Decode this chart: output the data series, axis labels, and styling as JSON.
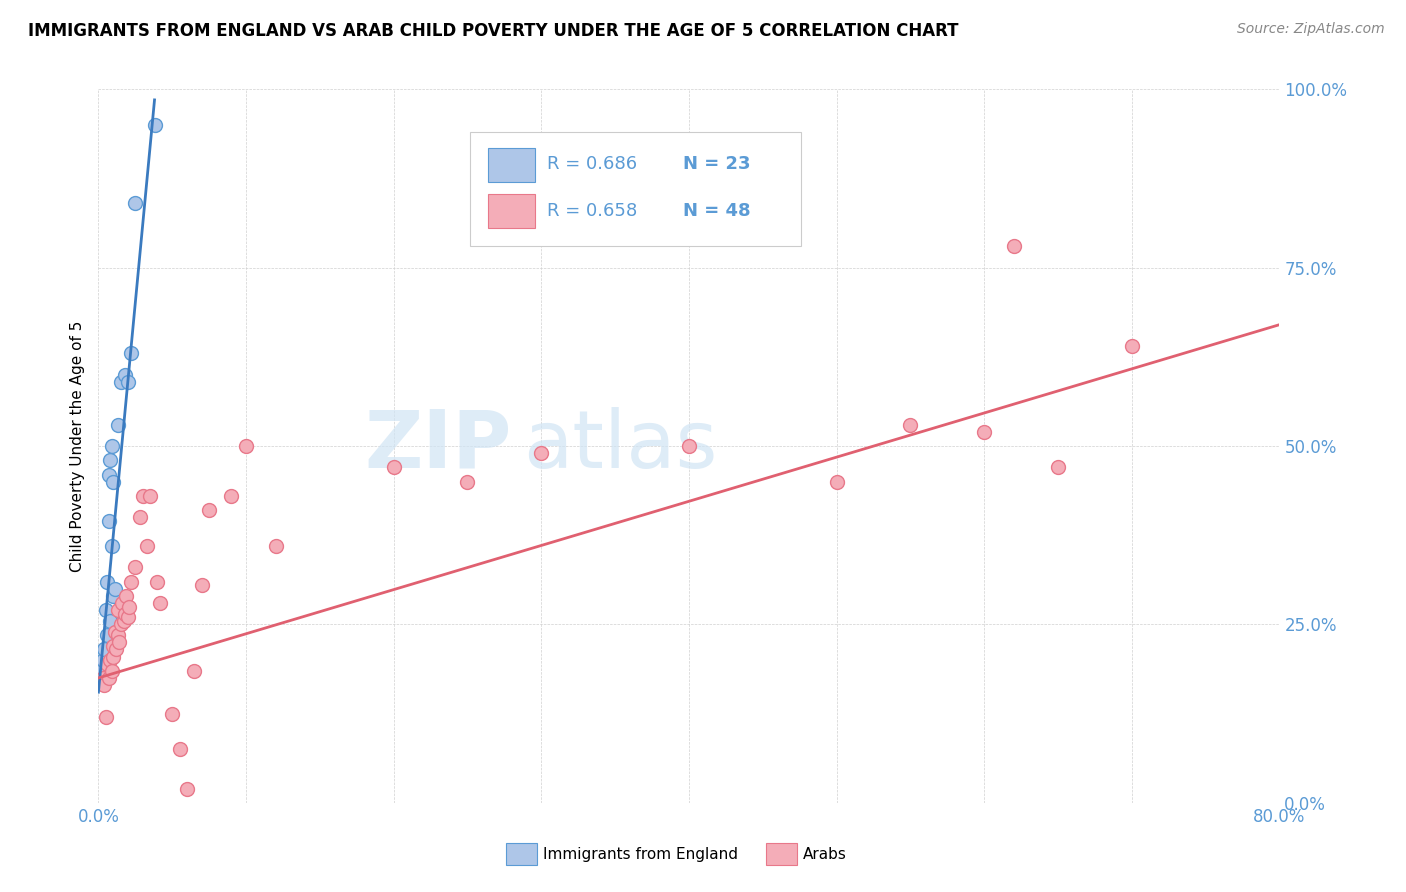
{
  "title": "IMMIGRANTS FROM ENGLAND VS ARAB CHILD POVERTY UNDER THE AGE OF 5 CORRELATION CHART",
  "source": "Source: ZipAtlas.com",
  "ylabel": "Child Poverty Under the Age of 5",
  "legend_label1": "Immigrants from England",
  "legend_label2": "Arabs",
  "r1": "R = 0.686",
  "n1": "N = 23",
  "r2": "R = 0.658",
  "n2": "N = 48",
  "color_blue_fill": "#aec6e8",
  "color_pink_fill": "#f4adb8",
  "color_blue_edge": "#5b9bd5",
  "color_pink_edge": "#e8788a",
  "color_blue_text": "#5b9bd5",
  "color_text": "#5b9bd5",
  "blue_line_color": "#3a7abf",
  "pink_line_color": "#e06070",
  "blue_scatter_x": [
    0.002,
    0.003,
    0.004,
    0.005,
    0.006,
    0.006,
    0.007,
    0.007,
    0.008,
    0.008,
    0.009,
    0.009,
    0.01,
    0.01,
    0.011,
    0.012,
    0.013,
    0.015,
    0.018,
    0.02,
    0.022,
    0.025,
    0.038
  ],
  "blue_scatter_y": [
    0.185,
    0.2,
    0.215,
    0.27,
    0.235,
    0.31,
    0.395,
    0.46,
    0.255,
    0.48,
    0.36,
    0.5,
    0.29,
    0.45,
    0.3,
    0.24,
    0.53,
    0.59,
    0.6,
    0.59,
    0.63,
    0.84,
    0.95
  ],
  "pink_scatter_x": [
    0.003,
    0.004,
    0.005,
    0.006,
    0.007,
    0.008,
    0.009,
    0.01,
    0.01,
    0.011,
    0.012,
    0.013,
    0.013,
    0.014,
    0.015,
    0.016,
    0.017,
    0.018,
    0.019,
    0.02,
    0.021,
    0.022,
    0.025,
    0.028,
    0.03,
    0.033,
    0.035,
    0.04,
    0.042,
    0.05,
    0.055,
    0.06,
    0.065,
    0.07,
    0.075,
    0.09,
    0.1,
    0.12,
    0.2,
    0.25,
    0.3,
    0.4,
    0.5,
    0.55,
    0.6,
    0.62,
    0.65,
    0.7
  ],
  "pink_scatter_y": [
    0.175,
    0.165,
    0.12,
    0.195,
    0.175,
    0.2,
    0.185,
    0.205,
    0.22,
    0.24,
    0.215,
    0.235,
    0.27,
    0.225,
    0.25,
    0.28,
    0.255,
    0.265,
    0.29,
    0.26,
    0.275,
    0.31,
    0.33,
    0.4,
    0.43,
    0.36,
    0.43,
    0.31,
    0.28,
    0.125,
    0.075,
    0.02,
    0.185,
    0.305,
    0.41,
    0.43,
    0.5,
    0.36,
    0.47,
    0.45,
    0.49,
    0.5,
    0.45,
    0.53,
    0.52,
    0.78,
    0.47,
    0.64
  ],
  "blue_line_x0": 0.0,
  "blue_line_y0": 0.155,
  "blue_line_x1": 0.038,
  "blue_line_y1": 0.985,
  "pink_line_x0": 0.0,
  "pink_line_y0": 0.175,
  "pink_line_x1": 0.8,
  "pink_line_y1": 0.67,
  "xlim_max": 0.8,
  "ylim_max": 1.0,
  "xticks": [
    0.0,
    0.1,
    0.2,
    0.3,
    0.4,
    0.5,
    0.6,
    0.7,
    0.8
  ],
  "yticks": [
    0.0,
    0.25,
    0.5,
    0.75,
    1.0
  ]
}
